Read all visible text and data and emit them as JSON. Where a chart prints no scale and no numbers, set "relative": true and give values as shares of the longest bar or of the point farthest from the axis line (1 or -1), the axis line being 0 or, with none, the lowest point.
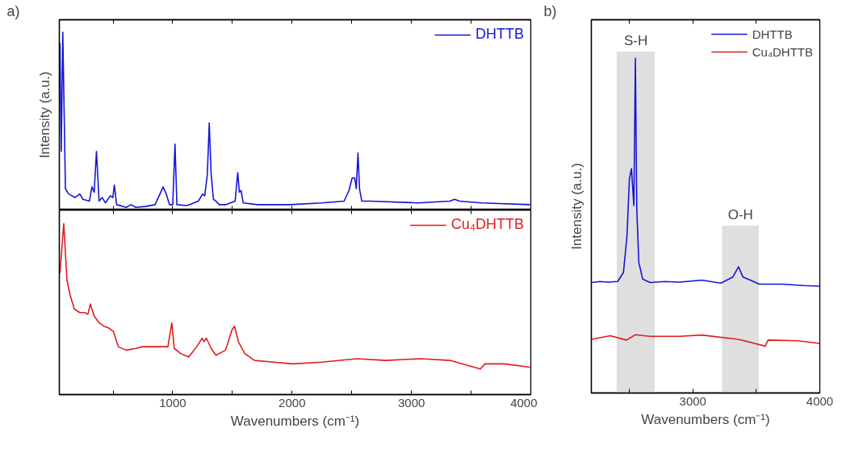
{
  "chart_data": [
    {
      "type": "line",
      "relative": true,
      "ylabel": "Intensity (a.u.)",
      "annotations": [
        "a)"
      ],
      "legend": "top right",
      "tick_labels": false,
      "grid": false,
      "xlim": [
        50,
        4000
      ],
      "xticks": [
        {
          "value": 500,
          "label": null
        },
        {
          "value": 1000,
          "label": null
        },
        {
          "value": 1500,
          "label": null
        },
        {
          "value": 2000,
          "label": null
        },
        {
          "value": 2500,
          "label": null
        },
        {
          "value": 3000,
          "label": null
        },
        {
          "value": 3500,
          "label": null
        },
        {
          "value": 4000,
          "label": null
        }
      ],
      "series": [
        {
          "name": "DHTTB",
          "color": "#1414d8",
          "x": [
            55,
            66,
            79,
            101,
            128,
            181,
            221,
            248,
            302,
            323,
            342,
            361,
            383,
            409,
            436,
            477,
            498,
            511,
            530,
            611,
            651,
            691,
            772,
            852,
            893,
            919,
            946,
            973,
            1000,
            1019,
            1035,
            1121,
            1215,
            1250,
            1268,
            1290,
            1306,
            1322,
            1341,
            1362,
            1389,
            1443,
            1523,
            1545,
            1558,
            1572,
            1591,
            1711,
            1980,
            2248,
            2436,
            2477,
            2503,
            2525,
            2538,
            2552,
            2565,
            2584,
            2651,
            3054,
            3322,
            3362,
            3403,
            3591,
            3993
          ],
          "values": [
            0.94,
            0.33,
            1.0,
            0.12,
            0.09,
            0.07,
            0.09,
            0.06,
            0.05,
            0.13,
            0.1,
            0.33,
            0.05,
            0.07,
            0.04,
            0.08,
            0.07,
            0.14,
            0.03,
            0.015,
            0.03,
            0.015,
            0.02,
            0.03,
            0.09,
            0.13,
            0.09,
            0.03,
            0.03,
            0.37,
            0.03,
            0.025,
            0.05,
            0.09,
            0.08,
            0.2,
            0.49,
            0.2,
            0.06,
            0.05,
            0.03,
            0.03,
            0.05,
            0.21,
            0.1,
            0.11,
            0.04,
            0.03,
            0.03,
            0.04,
            0.05,
            0.11,
            0.18,
            0.18,
            0.12,
            0.32,
            0.12,
            0.05,
            0.05,
            0.04,
            0.05,
            0.06,
            0.05,
            0.04,
            0.03
          ]
        }
      ]
    },
    {
      "type": "line",
      "relative": true,
      "xlabel": "Wavenumbers (cm⁻¹)",
      "legend": "top right",
      "tick_labels": "x",
      "grid": false,
      "xlim": [
        50,
        4000
      ],
      "xticks": [
        {
          "value": 500,
          "label": null
        },
        1000,
        {
          "value": 1500,
          "label": null
        },
        2000,
        {
          "value": 2500,
          "label": null
        },
        3000,
        {
          "value": 3500,
          "label": null
        },
        4000
      ],
      "series": [
        {
          "name": "Cu₄DHTTB",
          "color": "#e01b1b",
          "x": [
            55,
            87,
            114,
            141,
            176,
            221,
            262,
            289,
            310,
            342,
            383,
            423,
            463,
            503,
            544,
            611,
            691,
            745,
            852,
            960,
            992,
            1013,
            1067,
            1134,
            1201,
            1247,
            1263,
            1282,
            1322,
            1362,
            1443,
            1497,
            1518,
            1550,
            1604,
            1685,
            1846,
            2007,
            2248,
            2544,
            2785,
            3081,
            3322,
            3577,
            3617,
            3779,
            3993
          ],
          "values": [
            0.71,
            1.0,
            0.67,
            0.58,
            0.5,
            0.48,
            0.48,
            0.47,
            0.53,
            0.46,
            0.42,
            0.4,
            0.39,
            0.37,
            0.28,
            0.26,
            0.27,
            0.28,
            0.28,
            0.28,
            0.42,
            0.27,
            0.24,
            0.22,
            0.28,
            0.33,
            0.31,
            0.33,
            0.27,
            0.23,
            0.26,
            0.38,
            0.4,
            0.31,
            0.24,
            0.2,
            0.19,
            0.18,
            0.19,
            0.21,
            0.2,
            0.21,
            0.2,
            0.15,
            0.18,
            0.18,
            0.16
          ]
        }
      ]
    },
    {
      "type": "line",
      "relative": true,
      "xlabel": "Wavenumbers (cm⁻¹)",
      "ylabel": "Intensity (a.u.)",
      "annotations": [
        "b)"
      ],
      "legend": "top right",
      "tick_labels": "x",
      "grid": false,
      "xlim": [
        2200,
        4000
      ],
      "xticks": [
        {
          "value": 2500,
          "label": null
        },
        3000,
        {
          "value": 3500,
          "label": null
        },
        4000
      ],
      "bands": [
        {
          "axis": "x",
          "from": 2400,
          "to": 2700,
          "label": "S-H",
          "color": "#d9d9d9"
        },
        {
          "axis": "x",
          "from": 3230,
          "to": 3520,
          "label": "O-H",
          "color": "#d9d9d9"
        }
      ],
      "series": [
        {
          "name": "DHTTB",
          "color": "#1414d8",
          "x": [
            2200,
            2267,
            2337,
            2407,
            2453,
            2481,
            2500,
            2516,
            2535,
            2547,
            2558,
            2574,
            2605,
            2663,
            2779,
            2895,
            3070,
            3221,
            3314,
            3360,
            3395,
            3453,
            3523,
            3709,
            3872,
            4000
          ],
          "values": [
            0.33,
            0.333,
            0.331,
            0.333,
            0.36,
            0.47,
            0.64,
            0.67,
            0.56,
            1.0,
            0.55,
            0.39,
            0.34,
            0.33,
            0.333,
            0.331,
            0.337,
            0.328,
            0.346,
            0.377,
            0.346,
            0.337,
            0.325,
            0.325,
            0.321,
            0.319
          ]
        },
        {
          "name": "Cu₄DHTTB",
          "color": "#e01b1b",
          "x": [
            2200,
            2349,
            2477,
            2547,
            2663,
            2895,
            3070,
            3360,
            3570,
            3593,
            3826,
            4000
          ],
          "values": [
            0.16,
            0.171,
            0.158,
            0.174,
            0.169,
            0.169,
            0.173,
            0.16,
            0.14,
            0.158,
            0.156,
            0.148
          ]
        }
      ]
    }
  ]
}
